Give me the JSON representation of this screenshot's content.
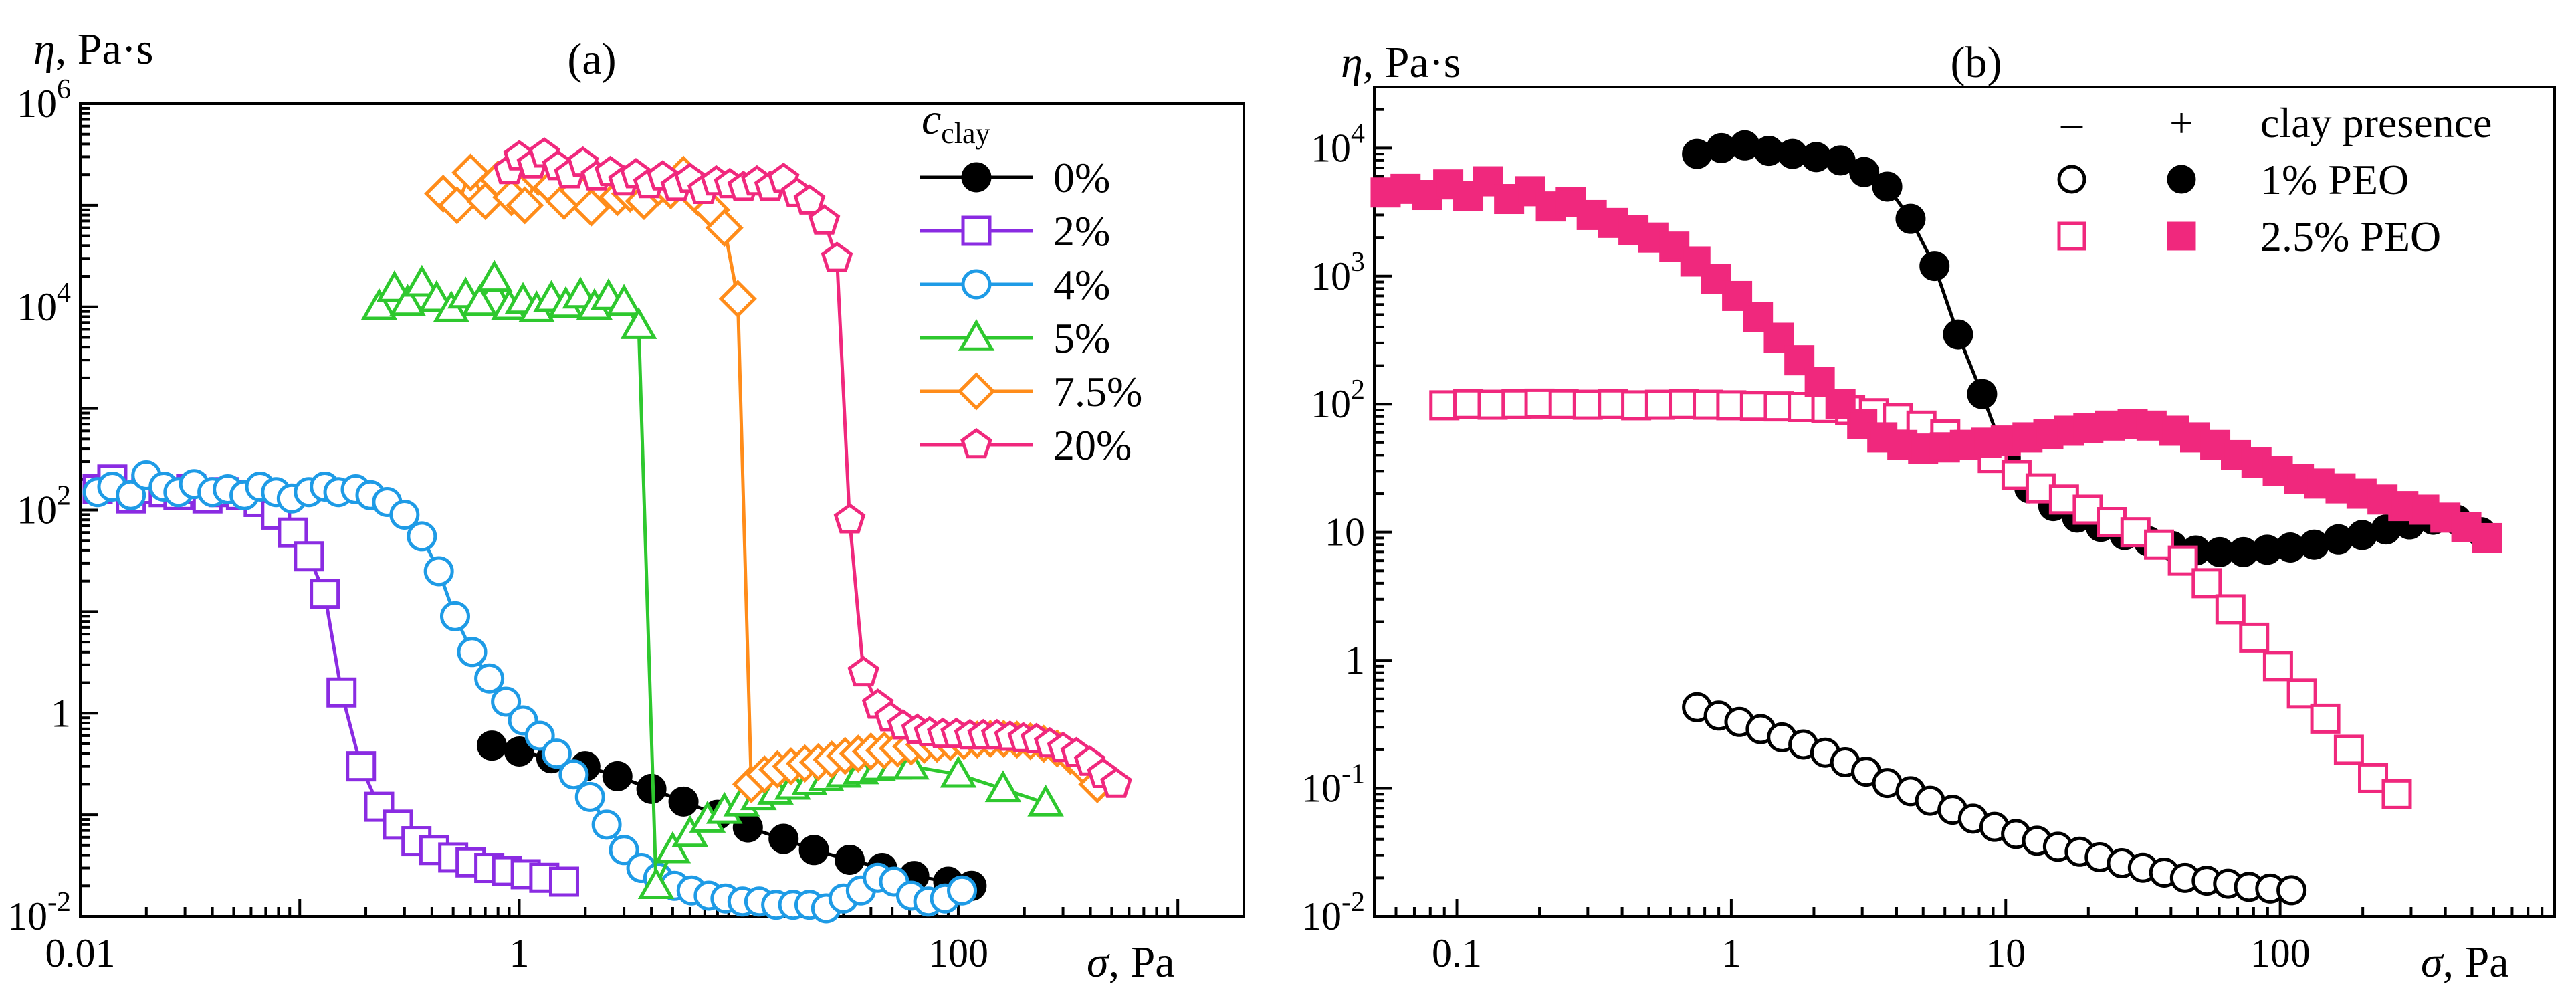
{
  "chart_data": [
    {
      "panel": "a",
      "type": "scatter",
      "title": "(a)",
      "ylabel_symbol": "η",
      "ylabel_unit": ", Pa·s",
      "xlabel_symbol": "σ",
      "xlabel_unit": ", Pa",
      "xscale": "log",
      "yscale": "log",
      "xlim": [
        0.01,
        2000
      ],
      "ylim": [
        0.01,
        1000000
      ],
      "xticks": [
        {
          "v": 0.01,
          "label": "0.01"
        },
        {
          "v": 1,
          "label": "1"
        },
        {
          "v": 100,
          "label": "100"
        }
      ],
      "yticks": [
        {
          "v": 0.01,
          "base": "10",
          "exp": "-2"
        },
        {
          "v": 1,
          "base": "1",
          "exp": ""
        },
        {
          "v": 100,
          "base": "10",
          "exp": "2"
        },
        {
          "v": 10000,
          "base": "10",
          "exp": "4"
        },
        {
          "v": 1000000,
          "base": "10",
          "exp": "6"
        }
      ],
      "legend_title": "c",
      "legend_title_sub": "clay",
      "legend_position": "top-right",
      "series": [
        {
          "name": "0%",
          "marker": "circle",
          "filled": true,
          "color": "#000000",
          "x": [
            0.75,
            1.0,
            1.4,
            2.0,
            2.8,
            4.0,
            5.6,
            8,
            11,
            16,
            22,
            32,
            45,
            63,
            90,
            115
          ],
          "y": [
            0.48,
            0.42,
            0.36,
            0.3,
            0.24,
            0.18,
            0.135,
            0.1,
            0.075,
            0.058,
            0.045,
            0.036,
            0.03,
            0.025,
            0.022,
            0.02
          ]
        },
        {
          "name": "2%",
          "marker": "square",
          "filled": false,
          "color": "#8a2be2",
          "x": [
            0.012,
            0.014,
            0.017,
            0.02,
            0.024,
            0.028,
            0.032,
            0.038,
            0.045,
            0.054,
            0.065,
            0.078,
            0.093,
            0.11,
            0.13,
            0.155,
            0.19,
            0.23,
            0.28,
            0.34,
            0.41,
            0.5,
            0.6,
            0.73,
            0.88,
            1.07,
            1.3,
            1.6
          ],
          "y": [
            160,
            200,
            130,
            160,
            150,
            140,
            160,
            130,
            150,
            140,
            120,
            90,
            60,
            35,
            15,
            1.6,
            0.3,
            0.12,
            0.08,
            0.055,
            0.045,
            0.038,
            0.034,
            0.03,
            0.028,
            0.026,
            0.024,
            0.022
          ]
        },
        {
          "name": "4%",
          "marker": "circle",
          "filled": false,
          "color": "#1e9be6",
          "x": [
            0.012,
            0.014,
            0.017,
            0.02,
            0.024,
            0.028,
            0.033,
            0.04,
            0.047,
            0.056,
            0.066,
            0.078,
            0.092,
            0.11,
            0.13,
            0.15,
            0.18,
            0.21,
            0.25,
            0.3,
            0.36,
            0.43,
            0.51,
            0.61,
            0.73,
            0.87,
            1.04,
            1.24,
            1.48,
            1.77,
            2.1,
            2.5,
            3.0,
            3.6,
            4.3,
            5.1,
            6.1,
            7.3,
            8.7,
            10.4,
            12.4,
            14.8,
            17.7,
            21,
            25,
            30,
            36,
            43,
            51,
            61,
            73,
            87,
            104
          ],
          "y": [
            150,
            170,
            140,
            220,
            170,
            150,
            180,
            150,
            160,
            140,
            170,
            150,
            130,
            150,
            170,
            150,
            160,
            140,
            120,
            90,
            55,
            25,
            9,
            4,
            2.2,
            1.3,
            0.85,
            0.6,
            0.4,
            0.25,
            0.15,
            0.08,
            0.045,
            0.03,
            0.024,
            0.02,
            0.018,
            0.016,
            0.015,
            0.014,
            0.014,
            0.013,
            0.013,
            0.013,
            0.012,
            0.015,
            0.018,
            0.024,
            0.022,
            0.016,
            0.014,
            0.015,
            0.018
          ]
        },
        {
          "name": "5%",
          "marker": "triangle",
          "filled": false,
          "color": "#2ec82e",
          "x": [
            0.23,
            0.27,
            0.31,
            0.36,
            0.42,
            0.49,
            0.57,
            0.66,
            0.77,
            0.9,
            1.04,
            1.2,
            1.4,
            1.63,
            1.9,
            2.2,
            2.55,
            3.0,
            3.5,
            4.2,
            5.0,
            6.0,
            7.2,
            8.6,
            10.3,
            12.3,
            14.7,
            17.6,
            21,
            25,
            30,
            36,
            43,
            51,
            61,
            100,
            160,
            250
          ],
          "y": [
            10000,
            15000,
            11000,
            17000,
            12000,
            9500,
            13000,
            11000,
            19000,
            10000,
            11500,
            9500,
            12000,
            10500,
            13000,
            10000,
            12500,
            11000,
            6500,
            0.02,
            0.045,
            0.065,
            0.09,
            0.11,
            0.13,
            0.15,
            0.17,
            0.19,
            0.21,
            0.23,
            0.25,
            0.27,
            0.29,
            0.3,
            0.3,
            0.25,
            0.18,
            0.13
          ]
        },
        {
          "name": "7.5%",
          "marker": "diamond",
          "filled": false,
          "color": "#ff8c1a",
          "x": [
            0.45,
            0.52,
            0.6,
            0.7,
            0.8,
            0.92,
            1.06,
            1.22,
            1.4,
            1.6,
            1.85,
            2.13,
            2.45,
            2.8,
            3.2,
            3.7,
            4.3,
            4.9,
            5.6,
            6.5,
            7.5,
            8.6,
            9.9,
            11.4,
            13.1,
            15,
            17.3,
            20,
            23,
            26.5,
            30.5,
            35,
            40,
            46,
            53,
            61,
            70,
            80,
            92,
            106,
            122,
            140,
            161,
            185,
            213,
            245,
            282,
            324,
            373,
            430
          ],
          "y": [
            130000,
            100000,
            210000,
            110000,
            180000,
            120000,
            100000,
            190000,
            150000,
            110000,
            140000,
            95000,
            150000,
            120000,
            130000,
            110000,
            150000,
            140000,
            200000,
            120000,
            90000,
            60000,
            12000,
            0.2,
            0.25,
            0.28,
            0.3,
            0.32,
            0.33,
            0.35,
            0.38,
            0.4,
            0.42,
            0.43,
            0.45,
            0.47,
            0.49,
            0.5,
            0.52,
            0.53,
            0.55,
            0.56,
            0.56,
            0.55,
            0.53,
            0.5,
            0.45,
            0.38,
            0.3,
            0.2
          ]
        },
        {
          "name": "20%",
          "marker": "pentagon",
          "filled": false,
          "color": "#f0287d",
          "x": [
            0.9,
            1.0,
            1.15,
            1.3,
            1.5,
            1.7,
            1.95,
            2.25,
            2.6,
            3.0,
            3.4,
            3.9,
            4.5,
            5.2,
            6.0,
            6.9,
            7.9,
            9.1,
            10.5,
            12.1,
            13.9,
            16,
            18.4,
            21,
            24.5,
            28,
            32,
            37,
            43,
            49,
            56,
            65,
            74,
            85,
            98,
            113,
            130,
            150,
            172,
            198,
            227,
            261,
            300,
            345,
            397,
            456,
            524
          ],
          "y": [
            220000,
            300000,
            250000,
            320000,
            240000,
            200000,
            260000,
            190000,
            210000,
            170000,
            200000,
            160000,
            190000,
            150000,
            180000,
            140000,
            170000,
            160000,
            150000,
            170000,
            150000,
            180000,
            130000,
            110000,
            70000,
            30000,
            80,
            2.5,
            1.2,
            0.9,
            0.75,
            0.68,
            0.64,
            0.62,
            0.62,
            0.6,
            0.6,
            0.6,
            0.58,
            0.56,
            0.55,
            0.5,
            0.45,
            0.4,
            0.33,
            0.25,
            0.2
          ]
        }
      ]
    },
    {
      "panel": "b",
      "type": "scatter",
      "title": "(b)",
      "ylabel_symbol": "η",
      "ylabel_unit": ", Pa·s",
      "xlabel_symbol": "σ",
      "xlabel_unit": ", Pa",
      "xscale": "log",
      "yscale": "log",
      "xlim": [
        0.05,
        1000
      ],
      "ylim": [
        0.01,
        30000
      ],
      "xticks": [
        {
          "v": 0.1,
          "label": "0.1"
        },
        {
          "v": 1,
          "label": "1"
        },
        {
          "v": 10,
          "label": "10"
        },
        {
          "v": 100,
          "label": "100"
        }
      ],
      "yticks": [
        {
          "v": 0.01,
          "base": "10",
          "exp": "-2"
        },
        {
          "v": 0.1,
          "base": "10",
          "exp": "-1"
        },
        {
          "v": 1,
          "base": "1",
          "exp": ""
        },
        {
          "v": 10,
          "base": "10",
          "exp": ""
        },
        {
          "v": 100,
          "base": "10",
          "exp": "2"
        },
        {
          "v": 1000,
          "base": "10",
          "exp": "3"
        },
        {
          "v": 10000,
          "base": "10",
          "exp": "4"
        }
      ],
      "legend_header_minus": "–",
      "legend_header_plus": "+",
      "legend_header_label": "clay presence",
      "legend_position": "top-right",
      "series": [
        {
          "name": "1% PEO",
          "clay": "–",
          "marker": "circle",
          "filled": false,
          "color": "#000000",
          "x": [
            0.75,
            0.9,
            1.07,
            1.28,
            1.53,
            1.83,
            2.2,
            2.6,
            3.1,
            3.7,
            4.5,
            5.3,
            6.4,
            7.6,
            9.1,
            10.9,
            13,
            15.5,
            18.6,
            22,
            26.5,
            31.6,
            37.8,
            45,
            54,
            64.6,
            77,
            92,
            110
          ],
          "y": [
            0.43,
            0.37,
            0.33,
            0.29,
            0.25,
            0.22,
            0.19,
            0.16,
            0.135,
            0.11,
            0.095,
            0.08,
            0.068,
            0.058,
            0.05,
            0.044,
            0.039,
            0.035,
            0.032,
            0.029,
            0.026,
            0.024,
            0.022,
            0.02,
            0.019,
            0.018,
            0.017,
            0.0165,
            0.016
          ]
        },
        {
          "name": "1% PEO",
          "clay": "+",
          "marker": "circle",
          "filled": true,
          "color": "#000000",
          "curve": true,
          "x": [
            0.75,
            0.92,
            1.12,
            1.37,
            1.67,
            2.04,
            2.5,
            3.05,
            3.7,
            4.5,
            5.5,
            6.7,
            8.2,
            10,
            12.2,
            14.9,
            18.2,
            22.2,
            27.1,
            33.1,
            40.4,
            49.3,
            60.2,
            73.5,
            89.7,
            109,
            133,
            163,
            199,
            243,
            296,
            361,
            440,
            540
          ],
          "y": [
            9000,
            10000,
            10500,
            9500,
            9000,
            8500,
            8000,
            6500,
            5000,
            2800,
            1200,
            350,
            120,
            38,
            22,
            16,
            13,
            11,
            9.5,
            8.5,
            7.8,
            7.2,
            7.0,
            7.0,
            7.3,
            7.6,
            8.0,
            8.8,
            9.5,
            10.5,
            11.5,
            12.5,
            12.5,
            10
          ]
        },
        {
          "name": "2.5% PEO",
          "clay": "–",
          "marker": "square",
          "filled": false,
          "color": "#f0287d",
          "x": [
            0.09,
            0.11,
            0.135,
            0.165,
            0.2,
            0.245,
            0.3,
            0.37,
            0.45,
            0.55,
            0.67,
            0.82,
            1.0,
            1.22,
            1.49,
            1.82,
            2.22,
            2.71,
            3.31,
            4.04,
            4.93,
            6.02,
            7.35,
            8.97,
            10.95,
            13.4,
            16.3,
            19.9,
            24.3,
            29.7,
            36.2,
            44.2,
            54,
            65.9,
            80.4,
            98.2,
            120,
            146,
            178,
            218,
            266
          ],
          "y": [
            98,
            100,
            99,
            100,
            101,
            100,
            99,
            100,
            98,
            99,
            100,
            99,
            98,
            97,
            96,
            95,
            93,
            90,
            85,
            78,
            68,
            58,
            48,
            38,
            28,
            22,
            18,
            15,
            12,
            10,
            8,
            6,
            4,
            2.5,
            1.5,
            0.9,
            0.55,
            0.35,
            0.2,
            0.12,
            0.09
          ]
        },
        {
          "name": "2.5% PEO",
          "clay": "+",
          "marker": "square",
          "filled": true,
          "color": "#f0287d",
          "x": [
            0.055,
            0.065,
            0.078,
            0.093,
            0.11,
            0.13,
            0.155,
            0.185,
            0.22,
            0.26,
            0.31,
            0.37,
            0.44,
            0.52,
            0.62,
            0.74,
            0.88,
            1.05,
            1.25,
            1.49,
            1.77,
            2.1,
            2.5,
            3.0,
            3.55,
            4.2,
            5.0,
            6.0,
            7.1,
            8.5,
            10,
            12,
            14.3,
            17,
            20,
            24,
            29,
            34,
            41,
            49,
            58,
            69,
            82,
            98,
            117,
            139,
            166,
            198,
            236,
            281,
            335,
            400,
            477,
            569
          ],
          "y": [
            4500,
            4800,
            4300,
            5200,
            4200,
            5500,
            4000,
            4600,
            3500,
            3800,
            3000,
            2600,
            2300,
            2000,
            1700,
            1300,
            950,
            700,
            480,
            330,
            220,
            150,
            100,
            70,
            55,
            48,
            45,
            46,
            48,
            50,
            52,
            55,
            58,
            62,
            65,
            68,
            70,
            68,
            62,
            55,
            48,
            40,
            35,
            30,
            26,
            24,
            22,
            20,
            18,
            16,
            15,
            13,
            11,
            9
          ]
        }
      ]
    }
  ]
}
